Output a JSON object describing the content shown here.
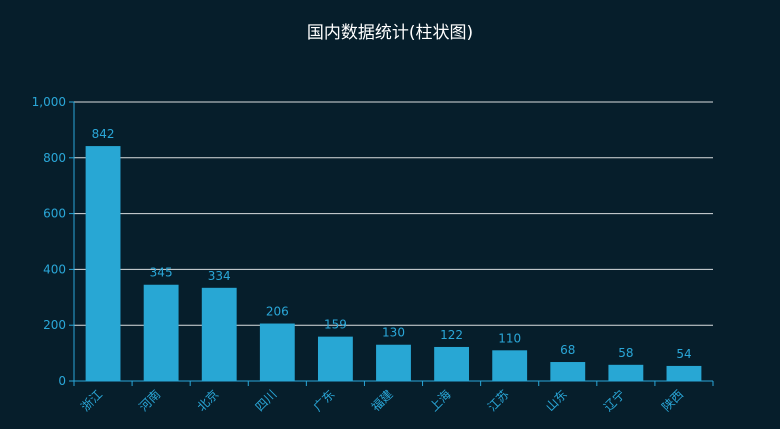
{
  "chart_data": {
    "type": "bar",
    "title": "国内数据统计(柱状图)",
    "categories": [
      "浙江",
      "河南",
      "北京",
      "四川",
      "广东",
      "福建",
      "上海",
      "江苏",
      "山东",
      "辽宁",
      "陕西"
    ],
    "values": [
      842,
      345,
      334,
      206,
      159,
      130,
      122,
      110,
      68,
      58,
      54
    ],
    "ylim": [
      0,
      1000
    ],
    "yticks": [
      "0",
      "200",
      "400",
      "600",
      "800",
      "1,000"
    ],
    "grid": true,
    "xlabel": "",
    "ylabel": "",
    "colors": {
      "bar": "#28a7d4",
      "axis": "#2aa7d8",
      "grid": "#ffffff",
      "text": "#2aa7d8",
      "title": "#ffffff",
      "background": "#061e2b"
    }
  }
}
